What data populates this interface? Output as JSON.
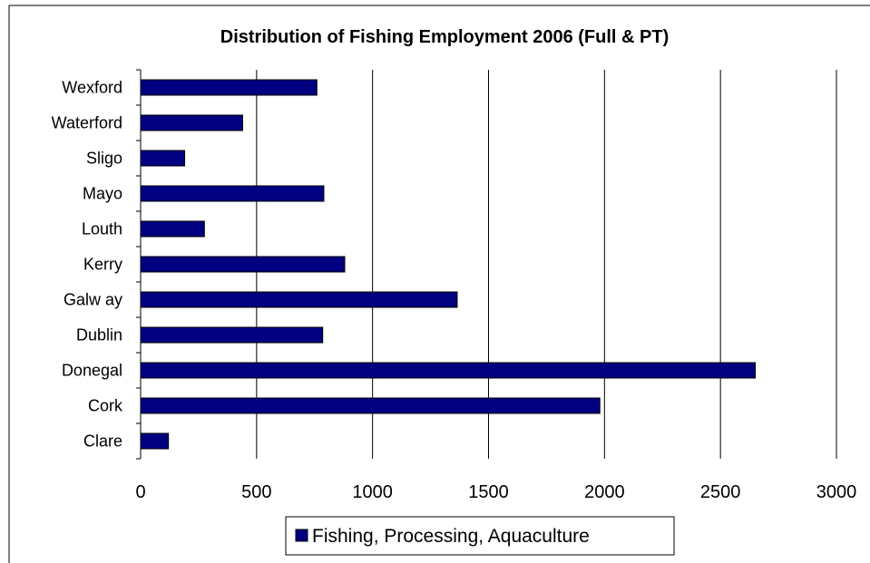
{
  "chart_data": {
    "type": "bar",
    "orientation": "horizontal",
    "title": "Distribution of Fishing Employment 2006 (Full & PT)",
    "categories": [
      "Wexford",
      "Waterford",
      "Sligo",
      "Mayo",
      "Louth",
      "Kerry",
      "Galw ay",
      "Dublin",
      "Donegal",
      "Cork",
      "Clare"
    ],
    "series": [
      {
        "name": "Fishing, Processing, Aquaculture",
        "color": "#000080",
        "values": [
          760,
          440,
          190,
          790,
          275,
          880,
          1365,
          785,
          2650,
          1980,
          120
        ]
      }
    ],
    "xlim": [
      0,
      3000
    ],
    "xticks": [
      "0",
      "500",
      "1000",
      "1500",
      "2000",
      "2500",
      "3000"
    ],
    "xtick_values": [
      0,
      500,
      1000,
      1500,
      2000,
      2500,
      3000
    ],
    "grid": "vertical",
    "legend_position": "bottom"
  }
}
